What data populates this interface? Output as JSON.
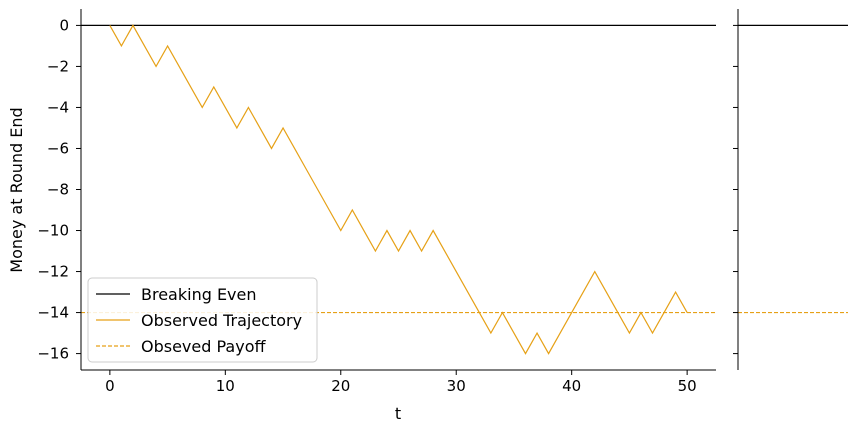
{
  "chart_data": {
    "type": "line",
    "title": "",
    "xlabel": "t",
    "ylabel": "Money at Round End",
    "xlim": [
      -2.5,
      52.5
    ],
    "ylim": [
      -16.8,
      0.8
    ],
    "x_ticks": [
      0,
      10,
      20,
      30,
      40,
      50
    ],
    "y_ticks": [
      0,
      -2,
      -4,
      -6,
      -8,
      -10,
      -12,
      -14,
      -16
    ],
    "x_tick_labels": [
      "0",
      "10",
      "20",
      "30",
      "40",
      "50"
    ],
    "y_tick_labels": [
      "0",
      "−2",
      "−4",
      "−6",
      "−8",
      "−10",
      "−12",
      "−14",
      "−16"
    ],
    "grid": false,
    "legend_position": "lower-left",
    "series": [
      {
        "name": "Breaking Even",
        "style": "solid",
        "color": "#000000",
        "y": 0
      },
      {
        "name": "Observed Trajectory",
        "style": "solid",
        "color": "#E6A117",
        "x": [
          0,
          1,
          2,
          3,
          4,
          5,
          6,
          7,
          8,
          9,
          10,
          11,
          12,
          13,
          14,
          15,
          16,
          17,
          18,
          19,
          20,
          21,
          22,
          23,
          24,
          25,
          26,
          27,
          28,
          29,
          30,
          31,
          32,
          33,
          34,
          35,
          36,
          37,
          38,
          39,
          40,
          41,
          42,
          43,
          44,
          45,
          46,
          47,
          48,
          49,
          50
        ],
        "y": [
          0,
          -1,
          0,
          -1,
          -2,
          -1,
          -2,
          -3,
          -4,
          -3,
          -4,
          -5,
          -4,
          -5,
          -6,
          -5,
          -6,
          -7,
          -8,
          -9,
          -10,
          -9,
          -10,
          -11,
          -10,
          -11,
          -10,
          -11,
          -10,
          -11,
          -12,
          -13,
          -14,
          -15,
          -14,
          -15,
          -16,
          -15,
          -16,
          -15,
          -14,
          -13,
          -12,
          -13,
          -14,
          -15,
          -14,
          -15,
          -14,
          -13,
          -14
        ]
      },
      {
        "name": "Obseved Payoff",
        "style": "dashed",
        "color": "#E6A117",
        "y": -14
      }
    ]
  }
}
